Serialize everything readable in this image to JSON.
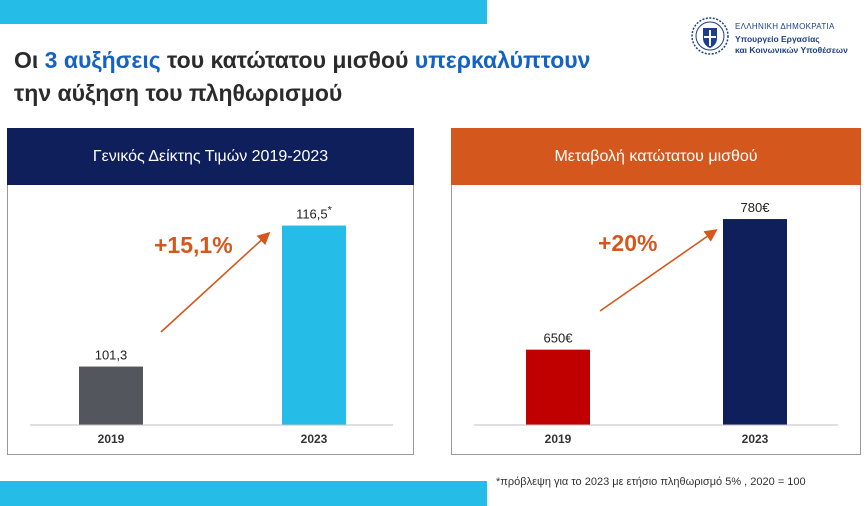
{
  "title": {
    "part1": "Οι ",
    "highlight1": "3 αυξήσεις",
    "part2": " του κατώτατου μισθού ",
    "highlight2": "υπερκαλύπτουν",
    "line2": "την αύξηση του πληθωρισμού"
  },
  "logo": {
    "line1": "ΕΛΛΗΝΙΚΗ ΔΗΜΟΚΡΑΤΙΑ",
    "line2": "Υπουργείο Εργασίας",
    "line3": "και Κοινωνικών Υποθέσεων"
  },
  "footnote": "*πρόβλεψη για το 2023 με ετήσιο πληθωρισμό 5% , 2020 = 100",
  "colors": {
    "accent_blue": "#1463c2",
    "navy": "#0e1f5c",
    "orange": "#d4581e",
    "cyan": "#25bce8",
    "gray_bar": "#53565c",
    "red_bar": "#c00000"
  },
  "chart_data": [
    {
      "type": "bar",
      "title": "Γενικός Δείκτης Τιμών 2019-2023",
      "categories": [
        "2019",
        "2023"
      ],
      "values": [
        101.3,
        116.5
      ],
      "value_labels": [
        "101,3",
        "116,5"
      ],
      "value_label_suffix": [
        "",
        "*"
      ],
      "bar_colors": [
        "#53565c",
        "#25bce8"
      ],
      "annotation": "+15,1%",
      "ylim": [
        95,
        118.5
      ]
    },
    {
      "type": "bar",
      "title": "Μεταβολή κατώτατου μισθού",
      "categories": [
        "2019",
        "2023"
      ],
      "values": [
        650,
        780
      ],
      "value_labels": [
        "650€",
        "780€"
      ],
      "value_label_suffix": [
        "",
        ""
      ],
      "bar_colors": [
        "#c00000",
        "#0e1f5c"
      ],
      "annotation": "+20%",
      "ylim": [
        575,
        792
      ]
    }
  ]
}
